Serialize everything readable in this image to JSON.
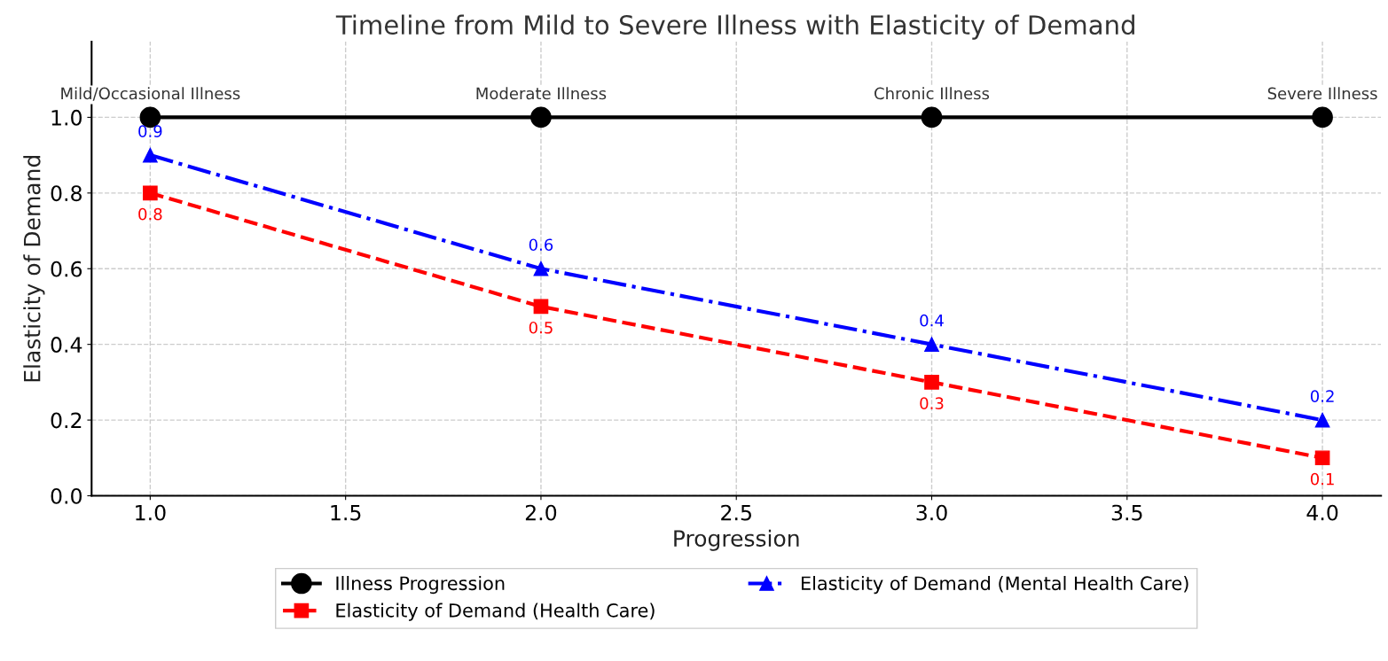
{
  "chart_data": {
    "type": "line",
    "title": "Timeline from Mild to Severe Illness with Elasticity of Demand",
    "xlabel": "Progression",
    "ylabel": "Elasticity of Demand",
    "x": [
      1,
      2,
      3,
      4
    ],
    "series": [
      {
        "name": "Illness Progression",
        "color": "#000000",
        "values": [
          1.0,
          1.0,
          1.0,
          1.0
        ],
        "marker": "circle",
        "line_style": "solid"
      },
      {
        "name": "Elasticity of Demand (Health Care)",
        "color": "#ff0000",
        "values": [
          0.8,
          0.5,
          0.3,
          0.1
        ],
        "marker": "square",
        "line_style": "dashed",
        "value_labels": [
          "0.8",
          "0.5",
          "0.3",
          "0.1"
        ]
      },
      {
        "name": "Elasticity of Demand (Mental Health Care)",
        "color": "#0000ff",
        "values": [
          0.9,
          0.6,
          0.4,
          0.2
        ],
        "marker": "triangle",
        "line_style": "dashdot",
        "value_labels": [
          "0.9",
          "0.6",
          "0.4",
          "0.2"
        ]
      }
    ],
    "annotations": [
      {
        "text": "Mild/Occasional Illness",
        "x": 1,
        "y": 1.0
      },
      {
        "text": "Moderate Illness",
        "x": 2,
        "y": 1.0
      },
      {
        "text": "Chronic Illness",
        "x": 3,
        "y": 1.0
      },
      {
        "text": "Severe Illness",
        "x": 4,
        "y": 1.0
      }
    ],
    "xlim": [
      0.85,
      4.15
    ],
    "ylim": [
      0,
      1.2
    ],
    "xticks": [
      {
        "value": 1,
        "label": "1.0"
      },
      {
        "value": 1.5,
        "label": "1.5"
      },
      {
        "value": 2,
        "label": "2.0"
      },
      {
        "value": 2.5,
        "label": "2.5"
      },
      {
        "value": 3,
        "label": "3.0"
      },
      {
        "value": 3.5,
        "label": "3.5"
      },
      {
        "value": 4,
        "label": "4.0"
      }
    ],
    "yticks": [
      {
        "value": 0,
        "label": "0.0"
      },
      0.2,
      0.4,
      0.6,
      0.8,
      {
        "value": 1,
        "label": "1.0"
      }
    ],
    "grid": true,
    "legend": "bottom"
  }
}
